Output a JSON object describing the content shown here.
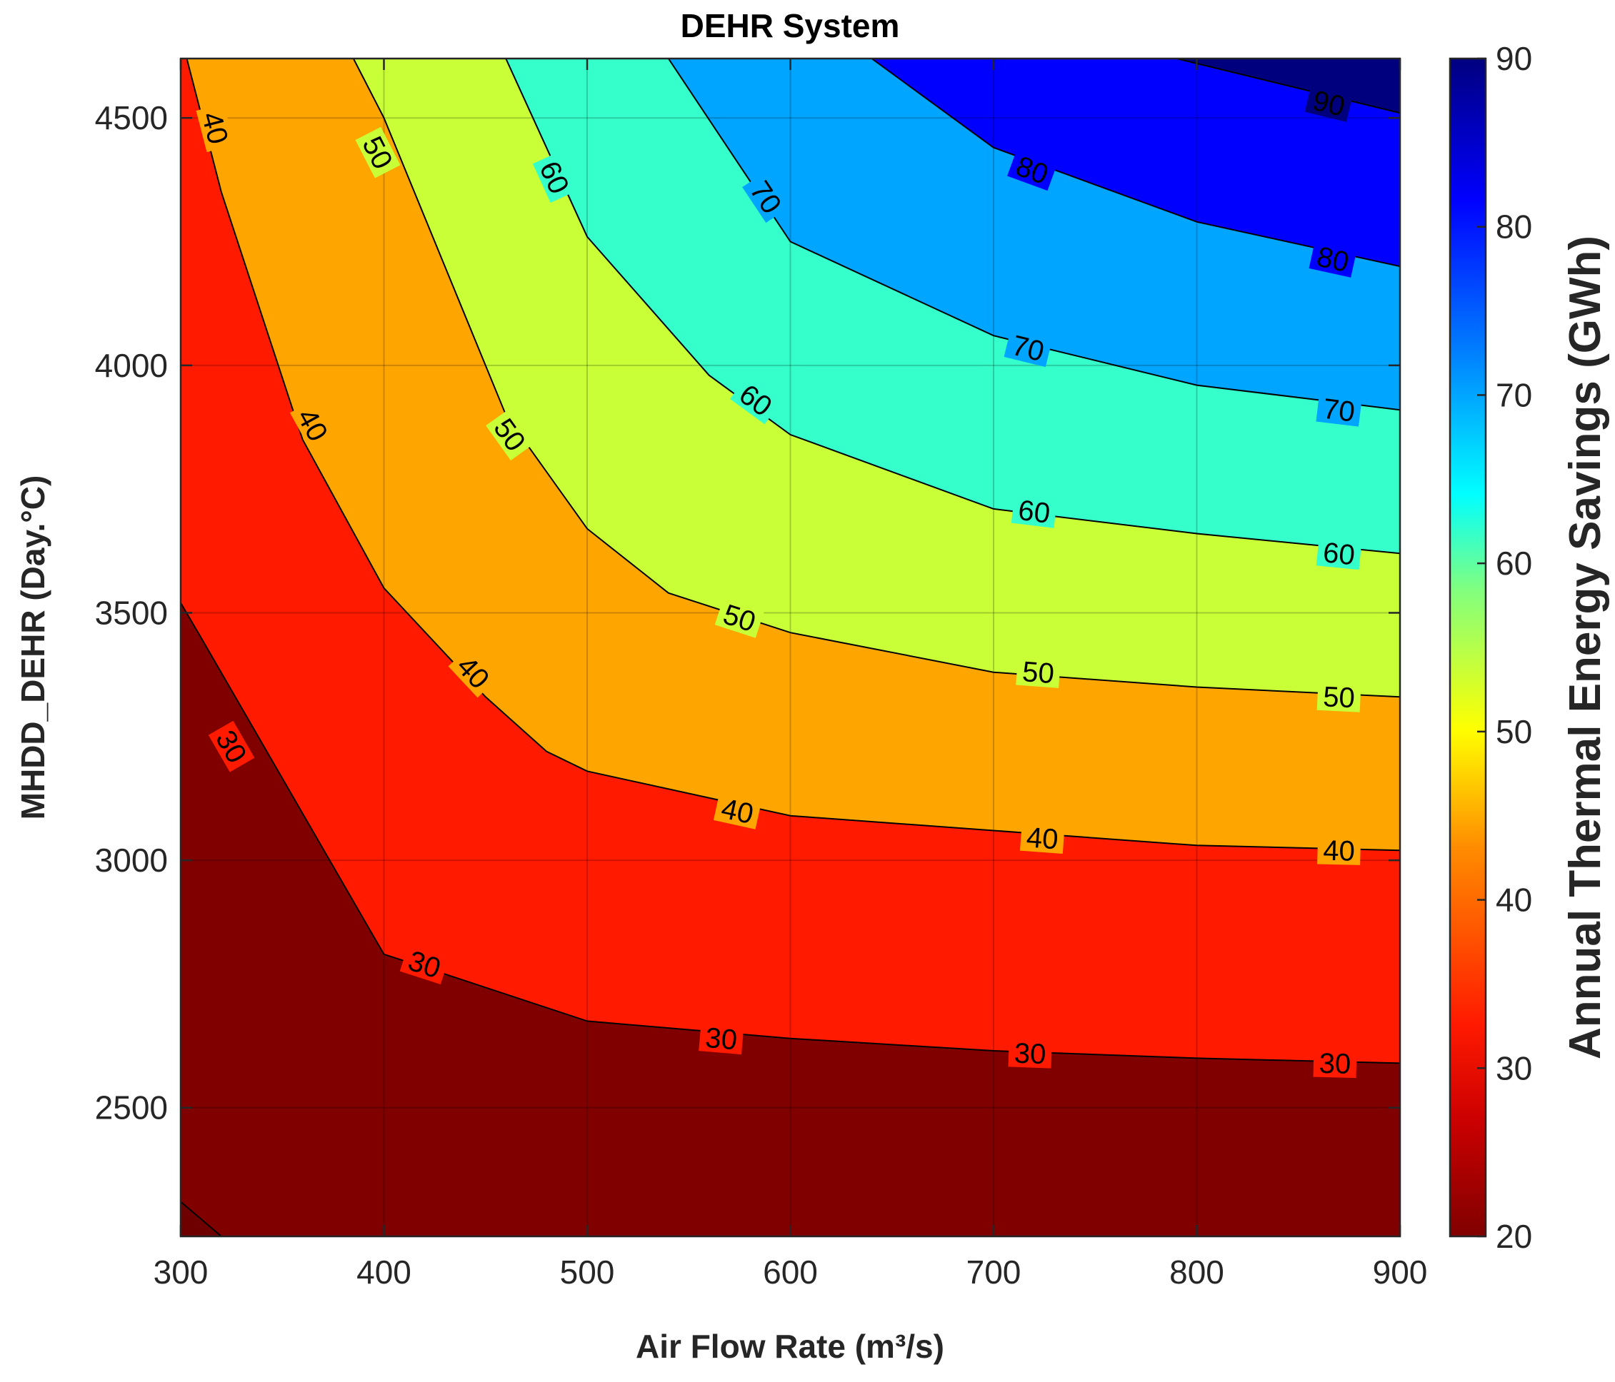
{
  "chart_data": {
    "type": "contour",
    "title": "DEHR System",
    "xlabel": "Air Flow Rate (m³/s)",
    "ylabel": "MHDD_DEHR (Day.°C)",
    "colorbar_label": "Annual Thermal Energy Savings (GWh)",
    "x": [
      300,
      400,
      500,
      600,
      700,
      800,
      900
    ],
    "xlim": [
      300,
      900
    ],
    "ylim": [
      2240,
      4620
    ],
    "clim": [
      20,
      90
    ],
    "x_ticks": [
      "300",
      "400",
      "500",
      "600",
      "700",
      "800",
      "900"
    ],
    "y_ticks": [
      "2500",
      "3000",
      "3500",
      "4000",
      "4500"
    ],
    "colorbar_ticks": [
      "20",
      "30",
      "40",
      "50",
      "60",
      "70",
      "80",
      "90"
    ],
    "grid": true,
    "colormap": "jet",
    "band_colors": [
      "#800000",
      "#ff1a00",
      "#ffa500",
      "#c8ff37",
      "#35ffca",
      "#00a5ff",
      "#0000ff",
      "#00007f"
    ],
    "contours": [
      {
        "level": "30",
        "x": [
          300,
          310,
          400,
          430,
          500,
          600,
          700,
          800,
          900
        ],
        "y": [
          3520,
          3450,
          2810,
          2770,
          2675,
          2640,
          2615,
          2600,
          2590
        ],
        "labels": [
          {
            "x": 325,
            "y": 3230
          },
          {
            "x": 420,
            "y": 2790
          },
          {
            "x": 566,
            "y": 2640
          },
          {
            "x": 718,
            "y": 2610
          },
          {
            "x": 868,
            "y": 2590
          }
        ]
      },
      {
        "level": "40",
        "x": [
          303,
          320,
          360,
          400,
          450,
          480,
          500,
          600,
          700,
          800,
          900
        ],
        "y": [
          4620,
          4350,
          3850,
          3550,
          3330,
          3220,
          3180,
          3090,
          3060,
          3030,
          3020
        ],
        "labels": [
          {
            "x": 317,
            "y": 4480
          },
          {
            "x": 365,
            "y": 3880
          },
          {
            "x": 444,
            "y": 3380
          },
          {
            "x": 574,
            "y": 3100
          },
          {
            "x": 724,
            "y": 3045
          },
          {
            "x": 870,
            "y": 3020
          }
        ]
      },
      {
        "level": "50",
        "x": [
          385,
          400,
          460,
          500,
          540,
          600,
          700,
          800,
          900
        ],
        "y": [
          4620,
          4500,
          3900,
          3670,
          3540,
          3460,
          3380,
          3350,
          3330
        ],
        "labels": [
          {
            "x": 397,
            "y": 4430
          },
          {
            "x": 462,
            "y": 3860
          },
          {
            "x": 575,
            "y": 3490
          },
          {
            "x": 722,
            "y": 3380
          },
          {
            "x": 870,
            "y": 3330
          }
        ]
      },
      {
        "level": "60",
        "x": [
          460,
          500,
          560,
          600,
          700,
          800,
          900
        ],
        "y": [
          4620,
          4260,
          3980,
          3860,
          3710,
          3660,
          3620
        ],
        "labels": [
          {
            "x": 484,
            "y": 4380
          },
          {
            "x": 583,
            "y": 3930
          },
          {
            "x": 720,
            "y": 3705
          },
          {
            "x": 870,
            "y": 3620
          }
        ]
      },
      {
        "level": "70",
        "x": [
          540,
          600,
          700,
          800,
          900
        ],
        "y": [
          4620,
          4250,
          4060,
          3960,
          3910
        ],
        "labels": [
          {
            "x": 588,
            "y": 4340
          },
          {
            "x": 717,
            "y": 4035
          },
          {
            "x": 870,
            "y": 3910
          }
        ]
      },
      {
        "level": "80",
        "x": [
          640,
          700,
          800,
          900
        ],
        "y": [
          4620,
          4440,
          4290,
          4200
        ],
        "labels": [
          {
            "x": 719,
            "y": 4395
          },
          {
            "x": 867,
            "y": 4215
          }
        ]
      },
      {
        "level": "90",
        "x": [
          790,
          900
        ],
        "y": [
          4620,
          4510
        ],
        "labels": [
          {
            "x": 865,
            "y": 4530
          }
        ]
      }
    ]
  }
}
